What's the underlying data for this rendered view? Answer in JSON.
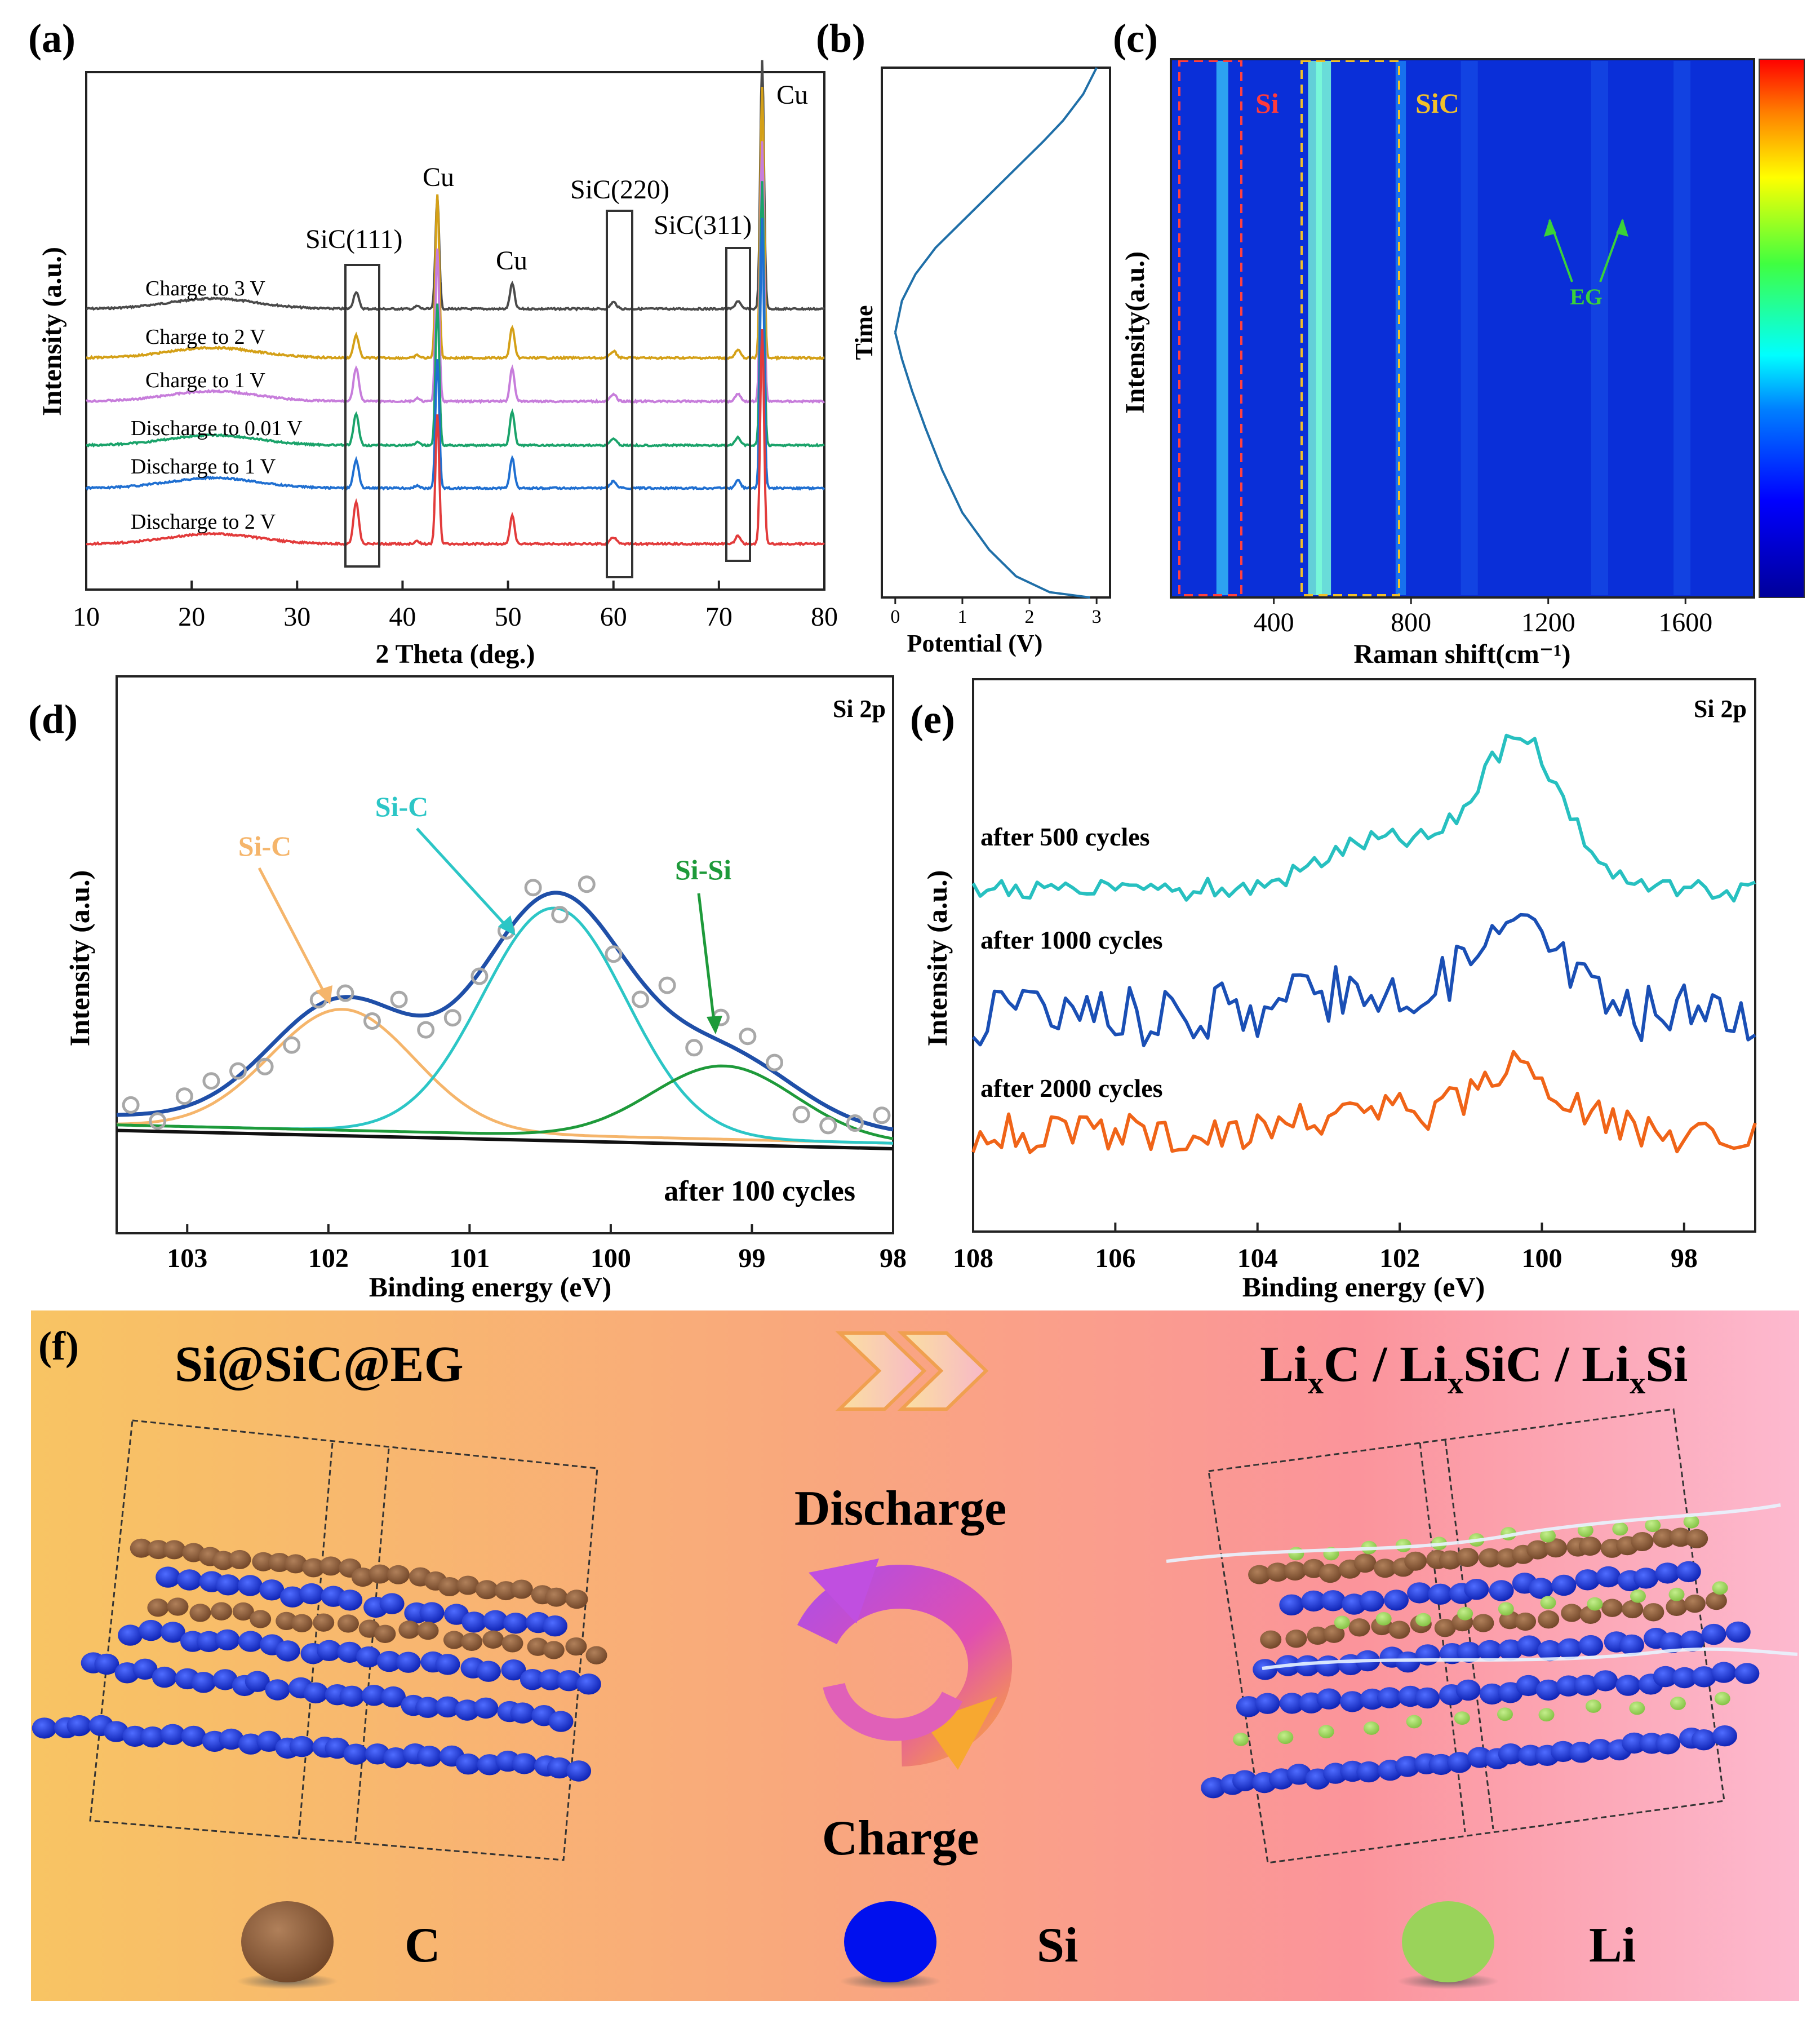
{
  "chart_data": [
    {
      "id": "a",
      "type": "line",
      "panel_label": "(a)",
      "xlabel": "2 Theta (deg.)",
      "ylabel": "Intensity (a.u.)",
      "xlim": [
        10,
        80
      ],
      "xticks": [
        10,
        20,
        30,
        40,
        50,
        60,
        70,
        80
      ],
      "series": [
        {
          "name": "Charge to 3 V",
          "color": "#4a4a4a"
        },
        {
          "name": "Charge to 2 V",
          "color": "#d4a017"
        },
        {
          "name": "Charge to 1 V",
          "color": "#c77ddb"
        },
        {
          "name": "Discharge to 0.01 V",
          "color": "#1aa36a"
        },
        {
          "name": "Discharge to 1 V",
          "color": "#1f6fd1"
        },
        {
          "name": "Discharge to 2 V",
          "color": "#e23b3b"
        }
      ],
      "peaks_deg": [
        35.6,
        41.4,
        43.3,
        50.4,
        60.0,
        71.8,
        74.1
      ],
      "annotations": [
        "SiC(111)",
        "Cu",
        "Cu",
        "SiC(220)",
        "SiC(311)",
        "Cu"
      ]
    },
    {
      "id": "b",
      "type": "line",
      "panel_label": "(b)",
      "xlabel": "Potential (V)",
      "ylabel": "Time",
      "xlim": [
        -0.2,
        3.2
      ],
      "xticks": [
        0,
        1,
        2,
        3
      ],
      "series": [
        {
          "name": "discharge",
          "x": [
            2.9,
            2.3,
            1.8,
            1.4,
            1.0,
            0.7,
            0.45,
            0.25,
            0.1,
            0.02,
            0.0
          ],
          "y": [
            0.0,
            0.01,
            0.04,
            0.09,
            0.16,
            0.24,
            0.32,
            0.39,
            0.45,
            0.49,
            0.5
          ]
        },
        {
          "name": "charge",
          "x": [
            0.0,
            0.1,
            0.3,
            0.6,
            1.0,
            1.4,
            1.8,
            2.2,
            2.5,
            2.8,
            3.0
          ],
          "y": [
            0.5,
            0.56,
            0.61,
            0.66,
            0.71,
            0.76,
            0.81,
            0.86,
            0.9,
            0.95,
            1.0
          ]
        }
      ]
    },
    {
      "id": "c",
      "type": "heatmap",
      "panel_label": "(c)",
      "xlabel": "Raman shift(cm⁻¹)",
      "ylabel": "Intensity(a.u.)",
      "xlim": [
        100,
        1800
      ],
      "xticks": [
        400,
        800,
        1200,
        1600
      ],
      "bands_cm": [
        {
          "center": 250,
          "strength": 0.5
        },
        {
          "center": 520,
          "strength": 0.7
        },
        {
          "center": 545,
          "strength": 0.8
        },
        {
          "center": 770,
          "strength": 0.35
        },
        {
          "center": 970,
          "strength": 0.1
        },
        {
          "center": 1350,
          "strength": 0.08
        },
        {
          "center": 1590,
          "strength": 0.08
        }
      ],
      "box_labels": [
        "Si",
        "SiC"
      ],
      "annotation": "EG"
    },
    {
      "id": "d",
      "type": "line",
      "panel_label": "(d)",
      "title": "Si 2p",
      "xlabel": "Binding energy (eV)",
      "ylabel": "Intensity (a.u.)",
      "xlim": [
        103.5,
        98
      ],
      "xticks": [
        103,
        102,
        101,
        100,
        99,
        98
      ],
      "peaks": [
        {
          "name": "Si-C",
          "center": 101.9,
          "height": 0.33,
          "color": "#f5b56b"
        },
        {
          "name": "Si-C",
          "center": 100.4,
          "height": 0.62,
          "color": "#2cc6c6"
        },
        {
          "name": "Si-Si",
          "center": 99.2,
          "height": 0.2,
          "color": "#1e9a3a"
        }
      ],
      "envelope_color": "#1f4fa8",
      "note": "after 100 cycles"
    },
    {
      "id": "e",
      "type": "line",
      "panel_label": "(e)",
      "title": "Si 2p",
      "xlabel": "Binding energy (eV)",
      "ylabel": "Intensity (a.u.)",
      "xlim": [
        108,
        97
      ],
      "xticks": [
        108,
        106,
        104,
        102,
        100,
        98
      ],
      "series": [
        {
          "name": "after 500 cycles",
          "color": "#27c0c0"
        },
        {
          "name": "after 1000 cycles",
          "color": "#1a4fb5"
        },
        {
          "name": "after 2000 cycles",
          "color": "#f06418"
        }
      ]
    }
  ],
  "panel_f": {
    "label": "(f)",
    "left_title": "Si@SiC@EG",
    "right_title": {
      "p1": "Li",
      "s1": "x",
      "p2": "C / Li",
      "s2": "x",
      "p3": "SiC / Li",
      "s3": "x",
      "p4": "Si"
    },
    "discharge": "Discharge",
    "charge": "Charge",
    "legend": [
      "C",
      "Si",
      "Li"
    ],
    "colors": {
      "C": "#8b5a3c",
      "Si": "#1f3fe0",
      "Li": "#9ad35a"
    }
  }
}
